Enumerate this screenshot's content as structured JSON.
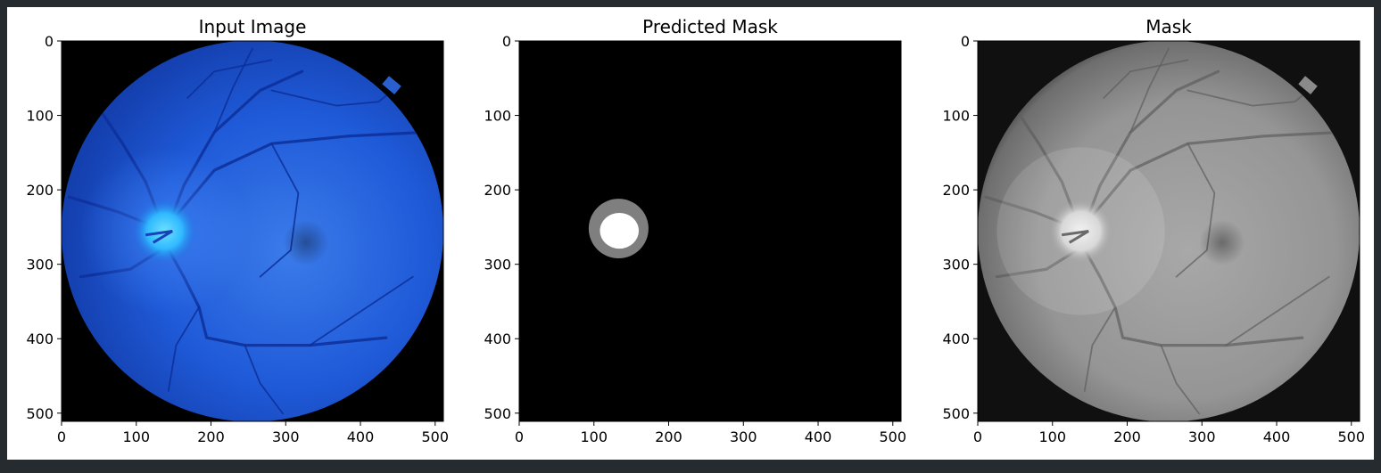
{
  "figure": {
    "panels": [
      {
        "id": "input-image",
        "title": "Input Image",
        "kind": "fundus-color"
      },
      {
        "id": "predicted-mask",
        "title": "Predicted Mask",
        "kind": "segmentation"
      },
      {
        "id": "mask",
        "title": "Mask",
        "kind": "fundus-gray"
      }
    ]
  },
  "chart_data": [
    {
      "type": "image",
      "title": "Input Image",
      "xlim": [
        0,
        511
      ],
      "ylim": [
        511,
        0
      ],
      "xticks": [
        0,
        100,
        200,
        300,
        400,
        500
      ],
      "yticks": [
        0,
        100,
        200,
        300,
        400,
        500
      ],
      "xlabel": "",
      "ylabel": ""
    },
    {
      "type": "image",
      "title": "Predicted Mask",
      "xlim": [
        0,
        511
      ],
      "ylim": [
        511,
        0
      ],
      "xticks": [
        0,
        100,
        200,
        300,
        400,
        500
      ],
      "yticks": [
        0,
        100,
        200,
        300,
        400,
        500
      ],
      "xlabel": "",
      "ylabel": "",
      "regions": [
        {
          "label": "optic disc",
          "center": [
            133,
            252
          ],
          "rx": 40,
          "ry": 40,
          "color": "#7f7f7f"
        },
        {
          "label": "optic cup",
          "center": [
            134,
            255
          ],
          "rx": 26,
          "ry": 24,
          "color": "#ffffff"
        }
      ]
    },
    {
      "type": "image",
      "title": "Mask",
      "xlim": [
        0,
        511
      ],
      "ylim": [
        511,
        0
      ],
      "xticks": [
        0,
        100,
        200,
        300,
        400,
        500
      ],
      "yticks": [
        0,
        100,
        200,
        300,
        400,
        500
      ],
      "xlabel": "",
      "ylabel": ""
    }
  ],
  "colors": {
    "page_background": "#262b30",
    "figure_background": "#ffffff",
    "fundus_blue": "#1a56d8",
    "disc_blue": "#33c8ff",
    "mask_gray": "#7f7f7f",
    "fundus_gray": "#9a9a9a"
  }
}
